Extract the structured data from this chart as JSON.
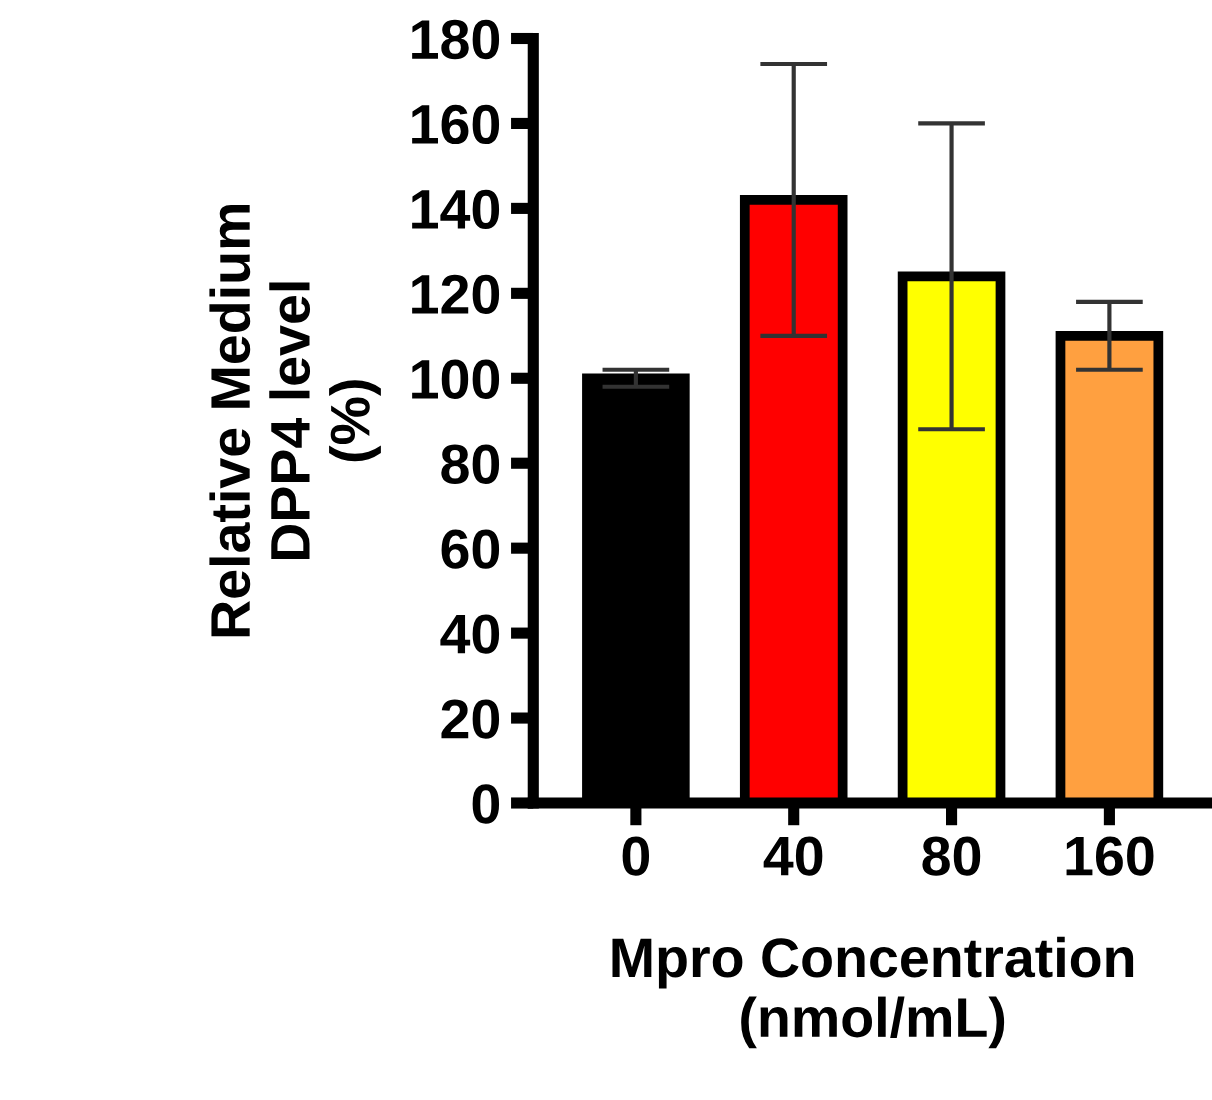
{
  "chart_data": {
    "type": "bar",
    "xlabel": "Mpro Concentration\n(nmol/mL)",
    "ylabel": "Relative Medium\nDPP4 level\n(%)",
    "categories": [
      "0",
      "40",
      "80",
      "160"
    ],
    "values": [
      100,
      142,
      124,
      110
    ],
    "errors": [
      2,
      32,
      36,
      8
    ],
    "colors": [
      "#000000",
      "#ff0000",
      "#ffff00",
      "#ffa040"
    ],
    "ylim": [
      0,
      180
    ],
    "yticks": [
      0,
      20,
      40,
      60,
      80,
      100,
      120,
      140,
      160,
      180
    ],
    "grid": false,
    "legend": false
  }
}
